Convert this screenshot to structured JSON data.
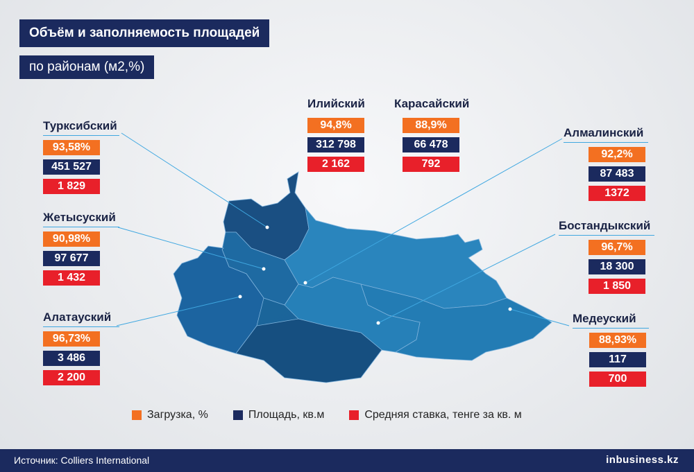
{
  "title": "Объём и заполняемость площадей",
  "subtitle": "по районам (м2,%)",
  "colors": {
    "load": "#f37021",
    "area": "#1b2a5e",
    "rate": "#e8202a",
    "map": "#1a6da3"
  },
  "districts": {
    "turksib": {
      "name": "Турксибский",
      "load": "93,58%",
      "area": "451 527",
      "rate": "1 829"
    },
    "zhetysu": {
      "name": "Жетысуский",
      "load": "90,98%",
      "area": "97 677",
      "rate": "1 432"
    },
    "alatau": {
      "name": "Алатауский",
      "load": "96,73%",
      "area": "3 486",
      "rate": "2 200"
    },
    "ili": {
      "name": "Илийский",
      "load": "94,8%",
      "area": "312 798",
      "rate": "2 162"
    },
    "karasai": {
      "name": "Карасайский",
      "load": "88,9%",
      "area": "66 478",
      "rate": "792"
    },
    "almaly": {
      "name": "Алмалинский",
      "load": "92,2%",
      "area": "87 483",
      "rate": "1372"
    },
    "bostandyk": {
      "name": "Бостандыкский",
      "load": "96,7%",
      "area": "18 300",
      "rate": "1 850"
    },
    "medeu": {
      "name": "Медеуский",
      "load": "88,93%",
      "area": "117",
      "rate": "700"
    }
  },
  "legend": {
    "load": "Загрузка, %",
    "area": "Площадь, кв.м",
    "rate": "Средняя ставка, тенге за кв. м"
  },
  "footer": {
    "source": "Источник: Colliers International",
    "logo": "inbusiness.kz"
  }
}
